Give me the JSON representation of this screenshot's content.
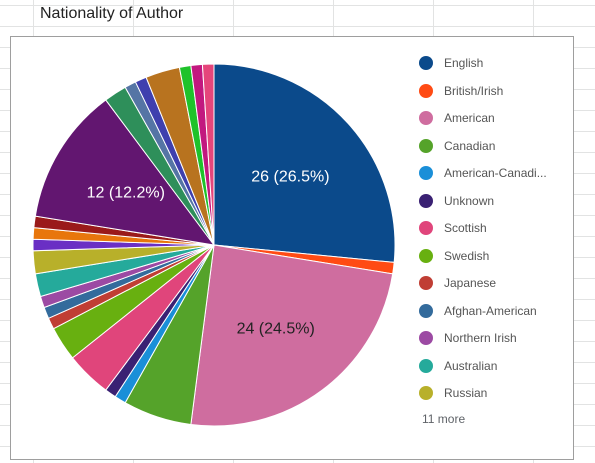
{
  "sheet": {
    "cell_title": "Nationality of Author"
  },
  "chart_data": {
    "type": "pie",
    "total": 98,
    "slices": [
      {
        "label": "English",
        "value": 26,
        "color": "#0b4a8b"
      },
      {
        "label": "British/Irish",
        "value": 1,
        "color": "#ff4b14"
      },
      {
        "label": "American",
        "value": 24,
        "color": "#cf6d9f"
      },
      {
        "label": "Canadian",
        "value": 6,
        "color": "#55a32a"
      },
      {
        "label": "American-Canadi...",
        "value": 1,
        "color": "#1a8fd8"
      },
      {
        "label": "Unknown",
        "value": 1,
        "color": "#3a2173"
      },
      {
        "label": "Scottish",
        "value": 4,
        "color": "#e0457b"
      },
      {
        "label": "Swedish",
        "value": 3,
        "color": "#68b010"
      },
      {
        "label": "Japanese",
        "value": 1,
        "color": "#c03e34"
      },
      {
        "label": "Afghan-American",
        "value": 1,
        "color": "#336b9c"
      },
      {
        "label": "Northern Irish",
        "value": 1,
        "color": "#9c4aa3"
      },
      {
        "label": "Australian",
        "value": 2,
        "color": "#25aa9b"
      },
      {
        "label": "Russian",
        "value": 2,
        "color": "#b8b02a"
      },
      {
        "label": "",
        "value": 1,
        "color": "#6a2fc4"
      },
      {
        "label": "",
        "value": 1,
        "color": "#e8760c"
      },
      {
        "label": "",
        "value": 1,
        "color": "#9a1a1a"
      },
      {
        "label": "",
        "value": 12,
        "color": "#621670"
      },
      {
        "label": "",
        "value": 2,
        "color": "#2e8f5a"
      },
      {
        "label": "",
        "value": 1,
        "color": "#5575a5"
      },
      {
        "label": "",
        "value": 1,
        "color": "#3f3fae"
      },
      {
        "label": "",
        "value": 3,
        "color": "#b8731f"
      },
      {
        "label": "",
        "value": 1,
        "color": "#1ec22a"
      },
      {
        "label": "",
        "value": 1,
        "color": "#c2187f"
      },
      {
        "label": "",
        "value": 1,
        "color": "#e5457b"
      }
    ],
    "data_labels": [
      "26 (26.5%)",
      "24 (24.5%)",
      "12 (12.2%)"
    ],
    "legend_position": "right",
    "legend_more": "11 more"
  }
}
